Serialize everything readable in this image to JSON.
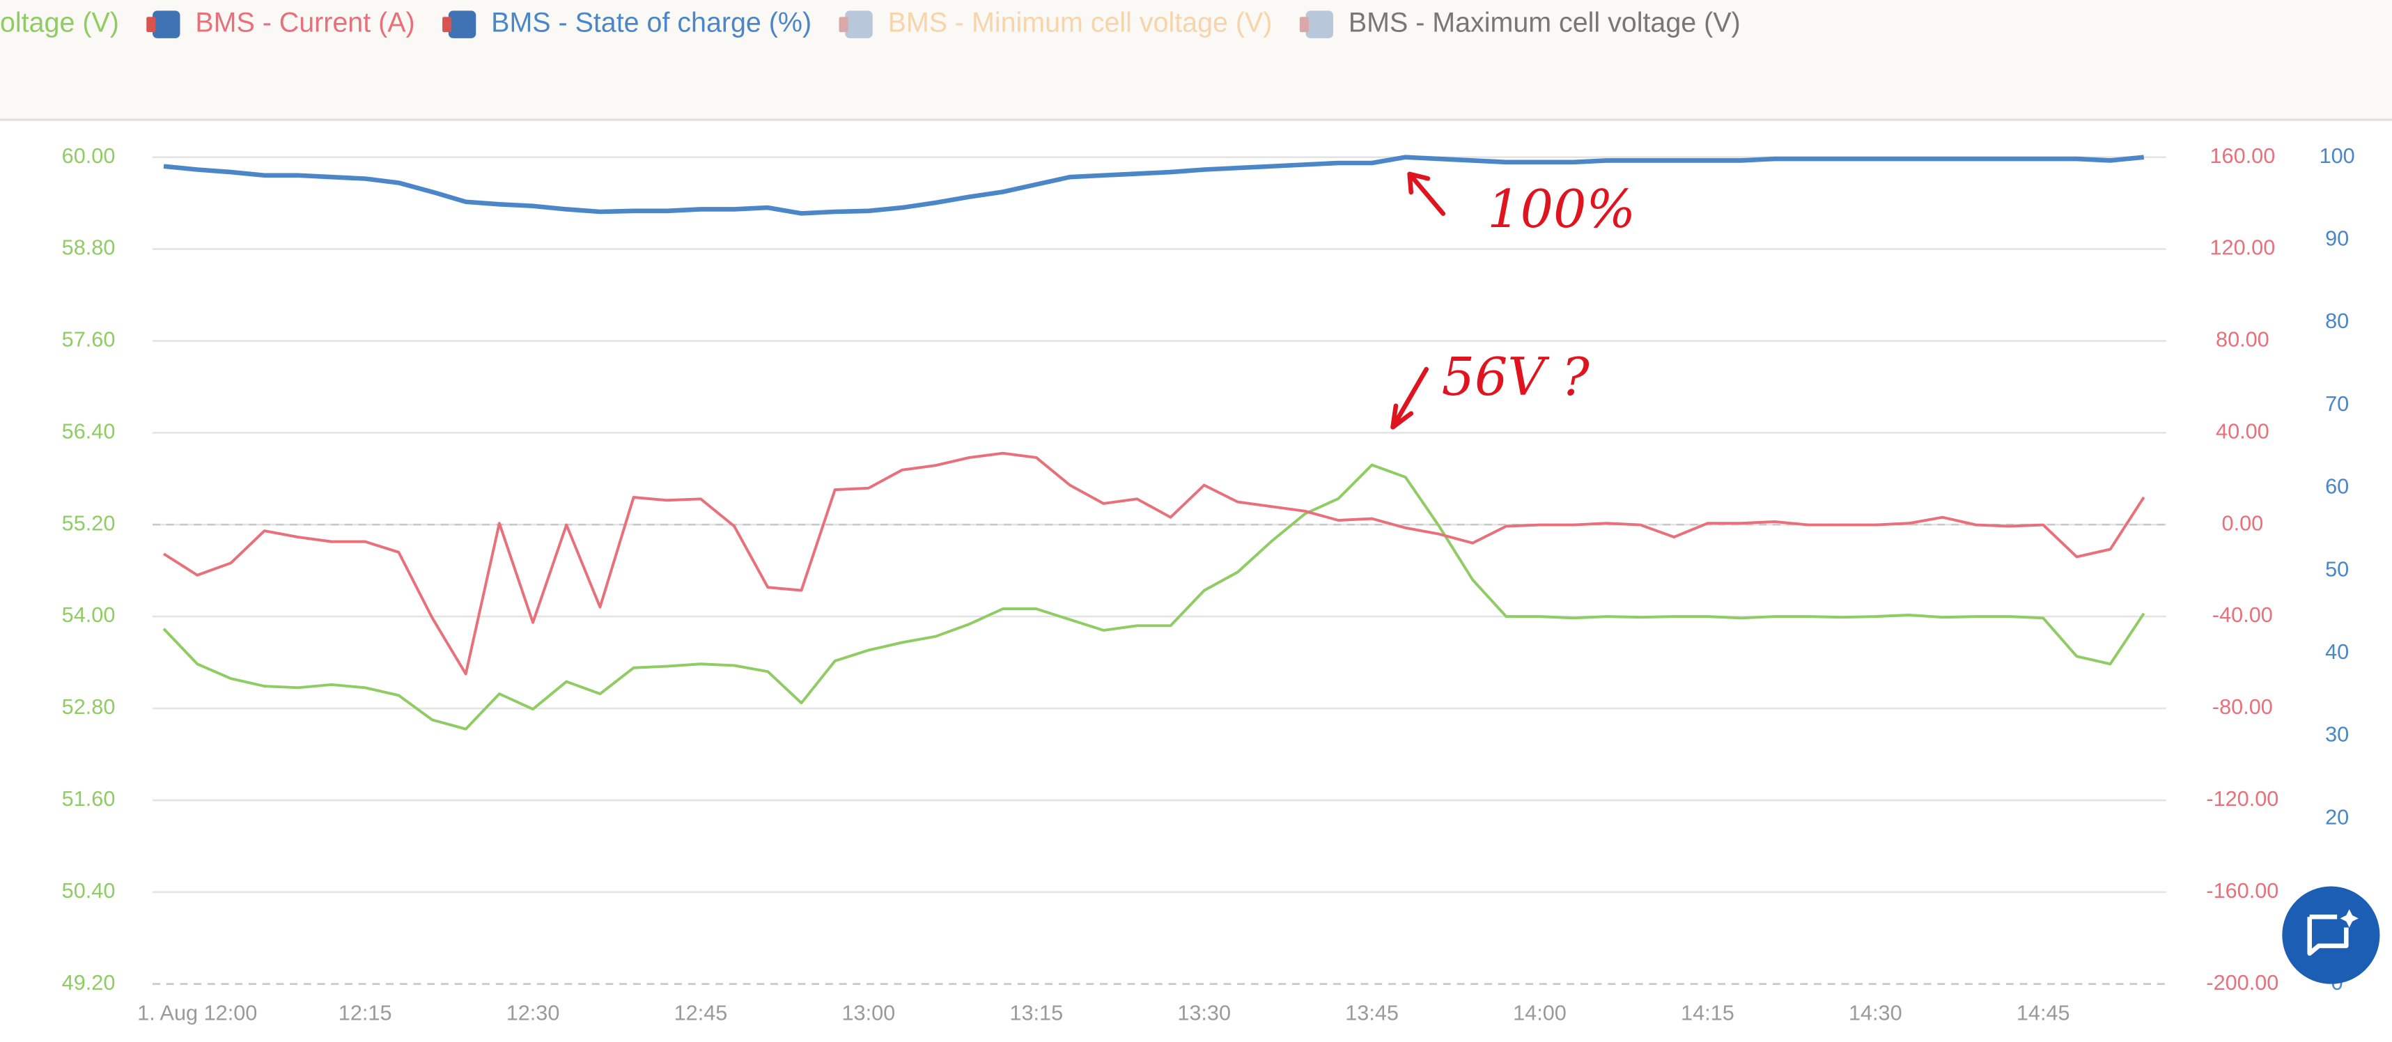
{
  "chart_data": {
    "type": "line",
    "x": [
      "11:57",
      "12:00",
      "12:03",
      "12:06",
      "12:09",
      "12:12",
      "12:15",
      "12:18",
      "12:21",
      "12:24",
      "12:27",
      "12:30",
      "12:33",
      "12:36",
      "12:39",
      "12:42",
      "12:45",
      "12:48",
      "12:51",
      "12:54",
      "12:57",
      "13:00",
      "13:03",
      "13:06",
      "13:09",
      "13:12",
      "13:15",
      "13:18",
      "13:21",
      "13:24",
      "13:27",
      "13:30",
      "13:33",
      "13:36",
      "13:39",
      "13:42",
      "13:45",
      "13:48",
      "13:51",
      "13:54",
      "13:57",
      "14:00",
      "14:03",
      "14:06",
      "14:09",
      "14:12",
      "14:15",
      "14:18",
      "14:21",
      "14:24",
      "14:27",
      "14:30",
      "14:33",
      "14:36",
      "14:39",
      "14:42",
      "14:45",
      "14:48",
      "14:51",
      "14:54"
    ],
    "xlim": [
      "11:56",
      "14:56"
    ],
    "xticks": [
      {
        "value": "12:00",
        "label": "1. Aug 12:00"
      },
      "12:15",
      "12:30",
      "12:45",
      "13:00",
      "13:15",
      "13:30",
      "13:45",
      "14:00",
      "14:15",
      "14:30",
      "14:45"
    ],
    "series": [
      {
        "name": "oltage (V)",
        "color": "#8fcc64",
        "axis": "y",
        "values": [
          53.84,
          53.38,
          53.19,
          53.09,
          53.07,
          53.11,
          53.07,
          52.97,
          52.65,
          52.53,
          52.99,
          52.79,
          53.15,
          52.99,
          53.33,
          53.35,
          53.38,
          53.36,
          53.28,
          52.87,
          53.42,
          53.56,
          53.66,
          53.74,
          53.9,
          54.1,
          54.1,
          53.96,
          53.82,
          53.88,
          53.88,
          54.34,
          54.58,
          54.98,
          55.34,
          55.54,
          55.98,
          55.82,
          55.18,
          54.48,
          54.0,
          54.0,
          53.98,
          54.0,
          53.99,
          54.0,
          54.0,
          53.98,
          54.0,
          54.0,
          53.99,
          54.0,
          54.02,
          53.99,
          54.0,
          54.0,
          53.98,
          53.48,
          53.38,
          54.04
        ]
      },
      {
        "name": "BMS - Current (A)",
        "color": "#e8707a",
        "axis": "y2",
        "values": [
          -12.7,
          -22.0,
          -16.7,
          -2.7,
          -5.4,
          -7.4,
          -7.4,
          -12.0,
          -40.6,
          -65,
          0.6,
          -42.6,
          -0.1,
          -35.9,
          11.9,
          10.6,
          11.2,
          -0.7,
          -27.3,
          -28.6,
          15.2,
          15.9,
          23.8,
          25.8,
          29.2,
          31.1,
          29.2,
          17.2,
          9.2,
          11.2,
          3.2,
          17.2,
          9.9,
          7.9,
          5.9,
          1.9,
          2.6,
          -1.4,
          -4.1,
          -8.0,
          -0.7,
          -0.1,
          -0.1,
          0.6,
          -0.1,
          -5.4,
          0.6,
          0.6,
          1.3,
          -0.1,
          -0.1,
          -0.1,
          0.6,
          3.2,
          -0.1,
          -0.7,
          -0.1,
          -14.0,
          -10.7,
          11.9
        ]
      },
      {
        "name": "BMS - State of charge (%)",
        "color": "#4a86c8",
        "axis": "y3",
        "values": [
          98.9,
          98.5,
          98.2,
          97.8,
          97.8,
          97.6,
          97.4,
          96.9,
          95.8,
          94.6,
          94.3,
          94.1,
          93.7,
          93.4,
          93.5,
          93.5,
          93.7,
          93.7,
          93.9,
          93.2,
          93.4,
          93.5,
          93.9,
          94.5,
          95.2,
          95.8,
          96.7,
          97.6,
          97.8,
          98.0,
          98.2,
          98.5,
          98.7,
          98.9,
          99.1,
          99.3,
          99.3,
          100,
          99.8,
          99.6,
          99.4,
          99.4,
          99.4,
          99.6,
          99.6,
          99.6,
          99.6,
          99.6,
          99.8,
          99.8,
          99.8,
          99.8,
          99.8,
          99.8,
          99.8,
          99.8,
          99.8,
          99.8,
          99.6,
          100
        ]
      }
    ],
    "hidden_series": [
      {
        "name": "BMS - Minimum cell voltage (V)",
        "color": "#f7d4a9"
      },
      {
        "name": "BMS - Maximum cell voltage (V)",
        "color": "#777777"
      }
    ],
    "ylim": [
      49.2,
      60
    ],
    "yticks": [
      {
        "value": 49.2,
        "label": "49.20"
      },
      {
        "value": 50.4,
        "label": "50.40"
      },
      {
        "value": 51.6,
        "label": "51.60"
      },
      {
        "value": 52.8,
        "label": "52.80"
      },
      {
        "value": 54,
        "label": "54.00"
      },
      {
        "value": 55.2,
        "label": "55.20"
      },
      {
        "value": 56.4,
        "label": "56.40"
      },
      {
        "value": 57.6,
        "label": "57.60"
      },
      {
        "value": 58.8,
        "label": "58.80"
      },
      {
        "value": 60,
        "label": "60.00"
      }
    ],
    "y2lim": [
      -200,
      160
    ],
    "y2ticks": [
      {
        "value": -200,
        "label": "-200.00"
      },
      {
        "value": -160,
        "label": "-160.00"
      },
      {
        "value": -120,
        "label": "-120.00"
      },
      {
        "value": -80,
        "label": "-80.00"
      },
      {
        "value": -40,
        "label": "-40.00"
      },
      {
        "value": 0,
        "label": "0.00"
      },
      {
        "value": 40,
        "label": "40.00"
      },
      {
        "value": 80,
        "label": "80.00"
      },
      {
        "value": 120,
        "label": "120.00"
      },
      {
        "value": 160,
        "label": "160.00"
      }
    ],
    "y3lim": [
      0,
      100
    ],
    "y3ticks": [
      0,
      20,
      30,
      40,
      50,
      60,
      70,
      80,
      90,
      100
    ],
    "grid": true,
    "annotations": [
      "100%",
      "56V ?"
    ]
  }
}
